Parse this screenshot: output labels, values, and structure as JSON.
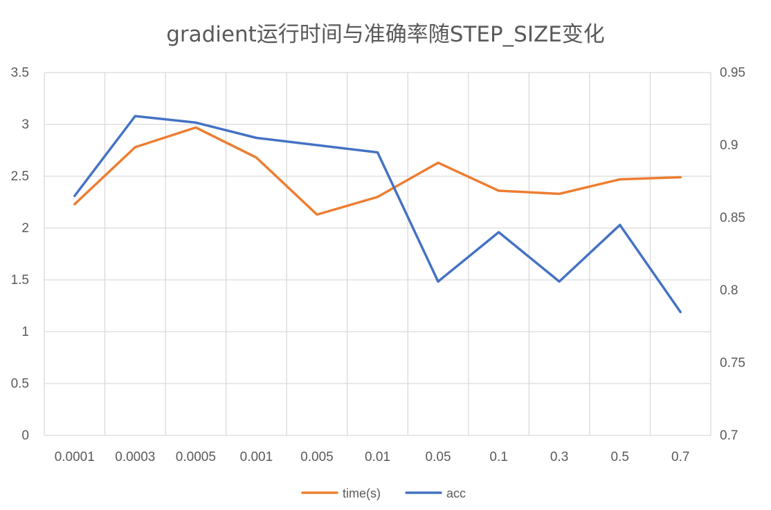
{
  "chart_data": {
    "type": "line",
    "title": "gradient运行时间与准确率随STEP_SIZE变化",
    "categories": [
      "0.0001",
      "0.0003",
      "0.0005",
      "0.001",
      "0.005",
      "0.01",
      "0.05",
      "0.1",
      "0.3",
      "0.5",
      "0.7"
    ],
    "series": [
      {
        "name": "time(s)",
        "axis": "left",
        "color": "#ED7D31",
        "values": [
          2.23,
          2.78,
          2.97,
          2.68,
          2.13,
          2.3,
          2.63,
          2.36,
          2.33,
          2.47,
          2.49
        ]
      },
      {
        "name": "acc",
        "axis": "right",
        "color": "#4472C4",
        "values": [
          0.865,
          0.92,
          0.9155,
          0.905,
          0.9,
          0.895,
          0.806,
          0.84,
          0.806,
          0.845,
          0.785
        ]
      }
    ],
    "y_left": {
      "ylim": [
        0,
        3.5
      ],
      "ticks": [
        "0",
        "0.5",
        "1",
        "1.5",
        "2",
        "2.5",
        "3",
        "3.5"
      ]
    },
    "y_right": {
      "ylim": [
        0.7,
        0.95
      ],
      "ticks": [
        "0.7",
        "0.75",
        "0.8",
        "0.85",
        "0.9",
        "0.95"
      ]
    },
    "grid": true,
    "legend_position": "bottom"
  }
}
